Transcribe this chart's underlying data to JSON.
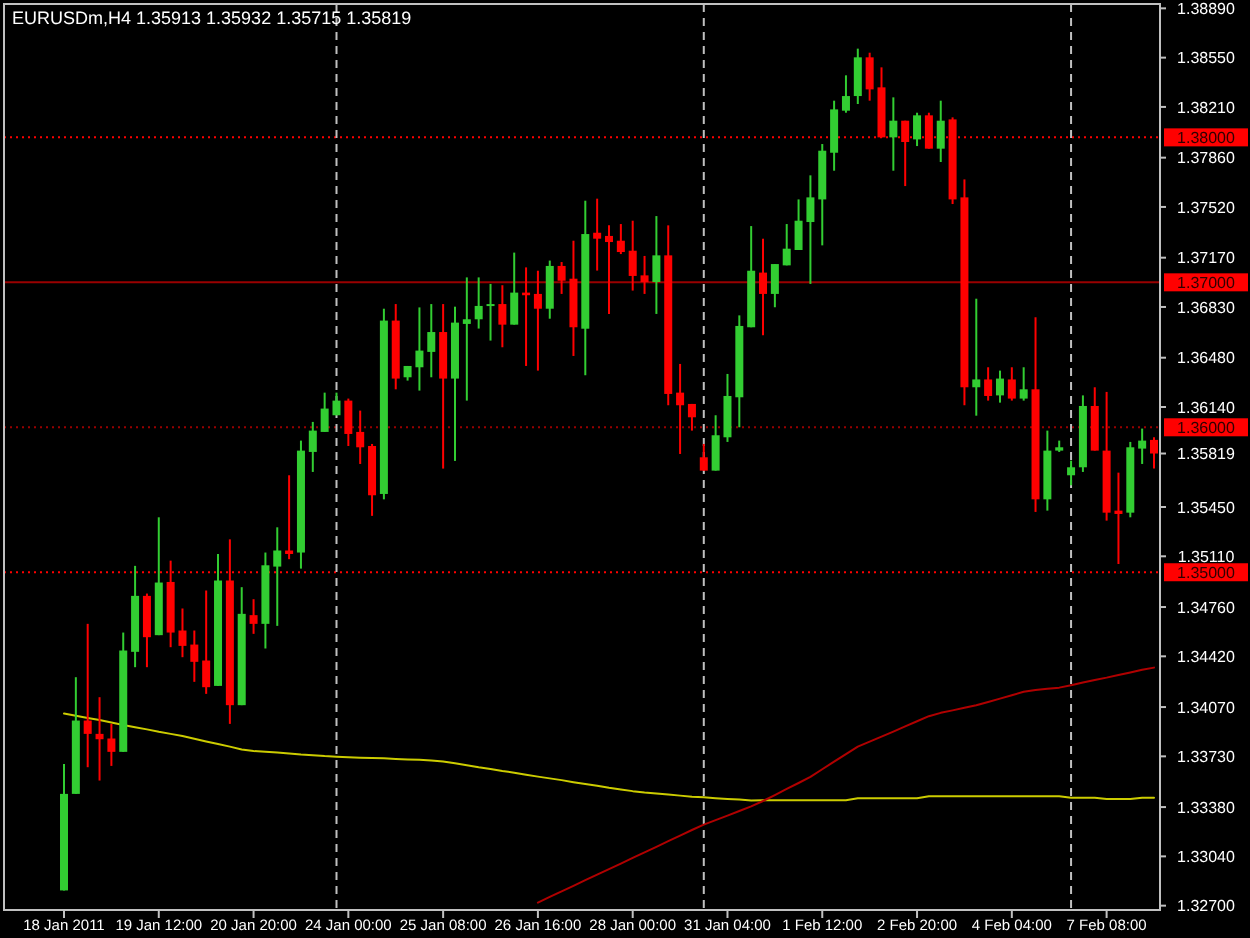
{
  "chart_data": {
    "type": "candlestick",
    "title": "EURUSDm,H4 1.35913 1.35932 1.35715 1.35819",
    "categories": [
      "18 Jan 2011",
      null,
      null,
      null,
      null,
      null,
      null,
      null,
      "19 Jan 12:00",
      null,
      null,
      null,
      null,
      null,
      null,
      null,
      "20 Jan 20:00",
      null,
      null,
      null,
      null,
      null,
      null,
      null,
      "24 Jan 00:00",
      null,
      null,
      null,
      null,
      null,
      null,
      null,
      "25 Jan 08:00",
      null,
      null,
      null,
      null,
      null,
      null,
      null,
      "26 Jan 16:00",
      null,
      null,
      null,
      null,
      null,
      null,
      null,
      "28 Jan 00:00",
      null,
      null,
      null,
      null,
      null,
      null,
      null,
      "31 Jan 04:00",
      null,
      null,
      null,
      null,
      null,
      null,
      null,
      "1 Feb 12:00",
      null,
      null,
      null,
      null,
      null,
      null,
      null,
      "2 Feb 20:00",
      null,
      null,
      null,
      null,
      null,
      null,
      null,
      "4 Feb 04:00",
      null,
      null,
      null,
      null,
      null,
      null,
      null,
      "7 Feb 08:00",
      null,
      null,
      null,
      null
    ],
    "ohlc": [
      [
        1.32805,
        1.33678,
        1.32805,
        1.33471
      ],
      [
        1.33471,
        1.34276,
        1.33471,
        1.33977
      ],
      [
        1.33977,
        1.34644,
        1.33655,
        1.33885
      ],
      [
        1.33885,
        1.34138,
        1.33563,
        1.33848
      ],
      [
        1.33853,
        1.33954,
        1.33664,
        1.33761
      ],
      [
        1.33761,
        1.34584,
        1.33761,
        1.3446
      ],
      [
        1.34451,
        1.35044,
        1.34345,
        1.34837
      ],
      [
        1.34837,
        1.34853,
        1.34345,
        1.34552
      ],
      [
        1.34566,
        1.35379,
        1.34566,
        1.34929
      ],
      [
        1.34933,
        1.3508,
        1.34483,
        1.34584
      ],
      [
        1.34598,
        1.3475,
        1.34414,
        1.34492
      ],
      [
        1.34501,
        1.34598,
        1.34244,
        1.34382
      ],
      [
        1.34391,
        1.34874,
        1.34161,
        1.34207
      ],
      [
        1.34216,
        1.35126,
        1.34216,
        1.34943
      ],
      [
        1.34943,
        1.35227,
        1.33954,
        1.34083
      ],
      [
        1.34083,
        1.34897,
        1.34083,
        1.34713
      ],
      [
        1.34704,
        1.34814,
        1.34575,
        1.34644
      ],
      [
        1.34644,
        1.35136,
        1.34474,
        1.35048
      ],
      [
        1.35039,
        1.3531,
        1.3463,
        1.3515
      ],
      [
        1.3515,
        1.35669,
        1.3509,
        1.35126
      ],
      [
        1.35136,
        1.35908,
        1.35025,
        1.35839
      ],
      [
        1.3583,
        1.36037,
        1.35692,
        1.35977
      ],
      [
        1.35968,
        1.36239,
        1.35968,
        1.36129
      ],
      [
        1.36083,
        1.36239,
        1.36083,
        1.36184
      ],
      [
        1.36184,
        1.36198,
        1.35871,
        1.35954
      ],
      [
        1.35968,
        1.36115,
        1.35747,
        1.35862
      ],
      [
        1.35871,
        1.35885,
        1.35389,
        1.35531
      ],
      [
        1.3554,
        1.36818,
        1.35503,
        1.36736
      ],
      [
        1.36736,
        1.3685,
        1.36262,
        1.36336
      ],
      [
        1.36345,
        1.36423,
        1.36322,
        1.36423
      ],
      [
        1.36414,
        1.36827,
        1.36253,
        1.36529
      ],
      [
        1.3652,
        1.3685,
        1.36345,
        1.36657
      ],
      [
        1.36657,
        1.3685,
        1.35715,
        1.36336
      ],
      [
        1.36336,
        1.36832,
        1.35768,
        1.36722
      ],
      [
        1.36713,
        1.37034,
        1.36184,
        1.36745
      ],
      [
        1.36745,
        1.37034,
        1.36681,
        1.36837
      ],
      [
        1.36837,
        1.36989,
        1.36598,
        1.3685
      ],
      [
        1.3685,
        1.3698,
        1.36552,
        1.36708
      ],
      [
        1.36708,
        1.37205,
        1.36708,
        1.36929
      ],
      [
        1.36929,
        1.37103,
        1.36423,
        1.36911
      ],
      [
        1.3692,
        1.3708,
        1.36391,
        1.36818
      ],
      [
        1.36818,
        1.3715,
        1.36749,
        1.37113
      ],
      [
        1.37113,
        1.3714,
        1.3692,
        1.37011
      ],
      [
        1.37025,
        1.37287,
        1.36492,
        1.3669
      ],
      [
        1.3668,
        1.37563,
        1.36359,
        1.37333
      ],
      [
        1.37342,
        1.37577,
        1.37081,
        1.37301
      ],
      [
        1.3732,
        1.37393,
        1.36782,
        1.37278
      ],
      [
        1.37287,
        1.37402,
        1.37195,
        1.37209
      ],
      [
        1.37218,
        1.37425,
        1.36943,
        1.37044
      ],
      [
        1.37048,
        1.37182,
        1.3692,
        1.37002
      ],
      [
        1.37002,
        1.37457,
        1.36782,
        1.37186
      ],
      [
        1.37186,
        1.37393,
        1.36152,
        1.3623
      ],
      [
        1.36239,
        1.36437,
        1.35816,
        1.36152
      ],
      [
        1.36161,
        1.36161,
        1.35977,
        1.36069
      ],
      [
        1.35793,
        1.35885,
        1.35701,
        1.35701
      ],
      [
        1.35701,
        1.36083,
        1.35701,
        1.35945
      ],
      [
        1.35931,
        1.36368,
        1.35899,
        1.36216
      ],
      [
        1.36207,
        1.36772,
        1.36,
        1.36699
      ],
      [
        1.3669,
        1.37388,
        1.3669,
        1.3708
      ],
      [
        1.37067,
        1.37301,
        1.36635,
        1.3692
      ],
      [
        1.3692,
        1.37126,
        1.36828,
        1.37126
      ],
      [
        1.37117,
        1.37402,
        1.37117,
        1.37232
      ],
      [
        1.37223,
        1.37572,
        1.37223,
        1.37425
      ],
      [
        1.37416,
        1.37738,
        1.36989,
        1.37586
      ],
      [
        1.37572,
        1.37954,
        1.37255,
        1.37908
      ],
      [
        1.37894,
        1.38253,
        1.3777,
        1.38193
      ],
      [
        1.38184,
        1.38428,
        1.3817,
        1.38285
      ],
      [
        1.38285,
        1.38612,
        1.3823,
        1.38552
      ],
      [
        1.38552,
        1.38584,
        1.38253,
        1.38331
      ],
      [
        1.38345,
        1.38483,
        1.38,
        1.38
      ],
      [
        1.38,
        1.38276,
        1.3777,
        1.38115
      ],
      [
        1.38115,
        1.38115,
        1.37664,
        1.37968
      ],
      [
        1.37986,
        1.3817,
        1.3794,
        1.38152
      ],
      [
        1.38152,
        1.3817,
        1.37922,
        1.37922
      ],
      [
        1.37922,
        1.38253,
        1.3783,
        1.38115
      ],
      [
        1.38124,
        1.38138,
        1.3754,
        1.37572
      ],
      [
        1.37586,
        1.3771,
        1.36152,
        1.36276
      ],
      [
        1.36276,
        1.36887,
        1.3608,
        1.3633
      ],
      [
        1.3633,
        1.36414,
        1.36184,
        1.36216
      ],
      [
        1.3622,
        1.36391,
        1.3617,
        1.36336
      ],
      [
        1.3633,
        1.36414,
        1.36184,
        1.36198
      ],
      [
        1.36198,
        1.36414,
        1.36184,
        1.36262
      ],
      [
        1.36262,
        1.36759,
        1.35416,
        1.35503
      ],
      [
        1.35503,
        1.35977,
        1.35425,
        1.35839
      ],
      [
        1.35839,
        1.35908,
        1.3583,
        1.35862
      ],
      [
        1.35669,
        1.3577,
        1.356,
        1.35724
      ],
      [
        1.35724,
        1.3622,
        1.35692,
        1.36147
      ],
      [
        1.36147,
        1.36276,
        1.35839,
        1.35839
      ],
      [
        1.35839,
        1.36244,
        1.35356,
        1.35411
      ],
      [
        1.35425,
        1.35687,
        1.35057,
        1.35402
      ],
      [
        1.35411,
        1.35899,
        1.35379,
        1.35862
      ],
      [
        1.35853,
        1.35991,
        1.35747,
        1.35908
      ],
      [
        1.35913,
        1.35932,
        1.35715,
        1.35819
      ]
    ],
    "colors": [
      "#32cd32",
      "#32cd32",
      "#ff0000",
      "#ff0000",
      "#ff0000",
      "#32cd32",
      "#32cd32",
      "#ff0000",
      "#32cd32",
      "#ff0000",
      "#ff0000",
      "#ff0000",
      "#ff0000",
      "#32cd32",
      "#ff0000",
      "#32cd32",
      "#ff0000",
      "#32cd32",
      "#32cd32",
      "#ff0000",
      "#32cd32",
      "#32cd32",
      "#32cd32",
      "#32cd32",
      "#ff0000",
      "#ff0000",
      "#ff0000",
      "#32cd32",
      "#ff0000",
      "#32cd32",
      "#32cd32",
      "#32cd32",
      "#ff0000",
      "#32cd32",
      "#32cd32",
      "#32cd32",
      "#32cd32",
      "#ff0000",
      "#32cd32",
      "#ff0000",
      "#ff0000",
      "#32cd32",
      "#ff0000",
      "#ff0000",
      "#32cd32",
      "#ff0000",
      "#ff0000",
      "#ff0000",
      "#ff0000",
      "#ff0000",
      "#32cd32",
      "#ff0000",
      "#ff0000",
      "#ff0000",
      "#ff0000",
      "#32cd32",
      "#32cd32",
      "#32cd32",
      "#32cd32",
      "#ff0000",
      "#32cd32",
      "#32cd32",
      "#32cd32",
      "#32cd32",
      "#32cd32",
      "#32cd32",
      "#32cd32",
      "#32cd32",
      "#ff0000",
      "#ff0000",
      "#32cd32",
      "#ff0000",
      "#32cd32",
      "#ff0000",
      "#32cd32",
      "#ff0000",
      "#ff0000",
      "#32cd32",
      "#ff0000",
      "#32cd32",
      "#ff0000",
      "#32cd32",
      "#ff0000",
      "#32cd32",
      "#32cd32",
      "#32cd32",
      "#32cd32",
      "#ff0000",
      "#ff0000",
      "#ff0000",
      "#32cd32",
      "#32cd32",
      "#ff0000"
    ],
    "series": [
      {
        "type": "line",
        "color": "#cccc00",
        "values": [
          1.34025,
          1.3401,
          1.33995,
          1.3398,
          1.33964,
          1.33946,
          1.33931,
          1.33916,
          1.33899,
          1.33885,
          1.3387,
          1.33852,
          1.33833,
          1.33815,
          1.33797,
          1.33777,
          1.33767,
          1.33761,
          1.33756,
          1.3375,
          1.33743,
          1.33738,
          1.33732,
          1.33728,
          1.33724,
          1.33721,
          1.33719,
          1.33716,
          1.33712,
          1.33709,
          1.33706,
          1.33702,
          1.33694,
          1.33682,
          1.33669,
          1.33655,
          1.33643,
          1.33629,
          1.33617,
          1.33603,
          1.3359,
          1.33578,
          1.33566,
          1.33552,
          1.33539,
          1.33527,
          1.33513,
          1.33501,
          1.3349,
          1.33481,
          1.33474,
          1.33466,
          1.33459,
          1.33452,
          1.33447,
          1.33441,
          1.33436,
          1.33432,
          1.33426,
          1.33427,
          1.33427,
          1.33427,
          1.33427,
          1.33427,
          1.33427,
          1.33427,
          1.33427,
          1.33441,
          1.33441,
          1.33441,
          1.33441,
          1.33441,
          1.33441,
          1.33455,
          1.33455,
          1.33455,
          1.33455,
          1.33455,
          1.33455,
          1.33455,
          1.33455,
          1.33455,
          1.33455,
          1.33455,
          1.33455,
          1.33445,
          1.33445,
          1.33445,
          1.33436,
          1.33436,
          1.33436,
          1.33445,
          1.33445
        ]
      },
      {
        "type": "line",
        "color": "#b00000",
        "values": [
          null,
          null,
          null,
          null,
          null,
          null,
          null,
          null,
          null,
          null,
          null,
          null,
          null,
          null,
          null,
          null,
          null,
          null,
          null,
          null,
          null,
          null,
          null,
          null,
          null,
          null,
          null,
          null,
          null,
          null,
          null,
          null,
          null,
          null,
          null,
          null,
          null,
          null,
          null,
          null,
          1.32721,
          1.3276,
          1.32799,
          1.32837,
          1.32876,
          1.32914,
          1.32952,
          1.3299,
          1.33029,
          1.33068,
          1.33106,
          1.33145,
          1.33183,
          1.33222,
          1.33259,
          1.3329,
          1.33321,
          1.33353,
          1.33385,
          1.33422,
          1.33463,
          1.33505,
          1.33546,
          1.33588,
          1.33641,
          1.33694,
          1.33745,
          1.33797,
          1.33832,
          1.33866,
          1.33901,
          1.33937,
          1.33972,
          1.34007,
          1.3403,
          1.34047,
          1.34065,
          1.34083,
          1.34105,
          1.34128,
          1.34152,
          1.34175,
          1.34188,
          1.34196,
          1.34204,
          1.34221,
          1.34239,
          1.34257,
          1.34273,
          1.34291,
          1.34309,
          1.34327,
          1.34342
        ]
      }
    ],
    "grid": "x",
    "ylim": [
      1.3267,
      1.3892
    ],
    "yticks": [
      {
        "value": 1.3889,
        "label": "1.38890"
      },
      {
        "value": 1.3855,
        "label": "1.38550"
      },
      {
        "value": 1.3821,
        "label": "1.38210"
      },
      {
        "value": 1.3786,
        "label": "1.37860"
      },
      {
        "value": 1.3752,
        "label": "1.37520"
      },
      {
        "value": 1.3717,
        "label": "1.37170"
      },
      {
        "value": 1.3683,
        "label": "1.36830"
      },
      {
        "value": 1.3648,
        "label": "1.36480"
      },
      {
        "value": 1.3614,
        "label": "1.36140"
      },
      1.35819,
      {
        "value": 1.3545,
        "label": "1.35450"
      },
      {
        "value": 1.3511,
        "label": "1.35110"
      },
      {
        "value": 1.3476,
        "label": "1.34760"
      },
      {
        "value": 1.3442,
        "label": "1.34420"
      },
      {
        "value": 1.3407,
        "label": "1.34070"
      },
      {
        "value": 1.3373,
        "label": "1.33730"
      },
      {
        "value": 1.3338,
        "label": "1.33380"
      },
      {
        "value": 1.3304,
        "label": "1.33040"
      },
      {
        "value": 1.327,
        "label": "1.32700"
      }
    ],
    "ref_lines": [
      {
        "axis": "y",
        "value": 1.38,
        "label": "1.38000",
        "color": "#ff0000",
        "line_style": "dotted"
      },
      {
        "axis": "y",
        "value": 1.37,
        "label": "1.37000",
        "color": "#990000",
        "line_style": "solid"
      },
      {
        "axis": "y",
        "value": 1.36,
        "label": "1.36000",
        "color": "#990000",
        "line_style": "dotted"
      },
      {
        "axis": "y",
        "value": 1.35,
        "label": "1.35000",
        "color": "#ff0000",
        "line_style": "dotted"
      }
    ]
  }
}
